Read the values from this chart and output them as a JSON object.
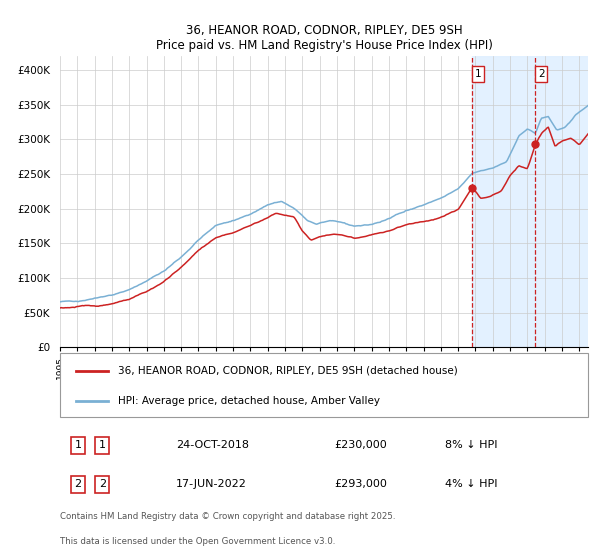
{
  "title": "36, HEANOR ROAD, CODNOR, RIPLEY, DE5 9SH",
  "subtitle": "Price paid vs. HM Land Registry's House Price Index (HPI)",
  "background_color": "#ffffff",
  "plot_bg_color": "#ffffff",
  "grid_color": "#cccccc",
  "hpi_color": "#7ab0d4",
  "price_color": "#cc2222",
  "marker_color": "#cc2222",
  "shade_color": "#ddeeff",
  "dashed_color": "#cc2222",
  "ylim": [
    0,
    420000
  ],
  "yticks": [
    0,
    50000,
    100000,
    150000,
    200000,
    250000,
    300000,
    350000,
    400000
  ],
  "ytick_labels": [
    "£0",
    "£50K",
    "£100K",
    "£150K",
    "£200K",
    "£250K",
    "£300K",
    "£350K",
    "£400K"
  ],
  "sale1_date": "24-OCT-2018",
  "sale1_price": 230000,
  "sale1_hpi_pct": "8% ↓ HPI",
  "sale1_year": 2018.82,
  "sale2_date": "17-JUN-2022",
  "sale2_price": 293000,
  "sale2_hpi_pct": "4% ↓ HPI",
  "sale2_year": 2022.46,
  "legend_line1": "36, HEANOR ROAD, CODNOR, RIPLEY, DE5 9SH (detached house)",
  "legend_line2": "HPI: Average price, detached house, Amber Valley",
  "footer_line1": "Contains HM Land Registry data © Crown copyright and database right 2025.",
  "footer_line2": "This data is licensed under the Open Government Licence v3.0.",
  "xmin": 1995.0,
  "xmax": 2025.5
}
